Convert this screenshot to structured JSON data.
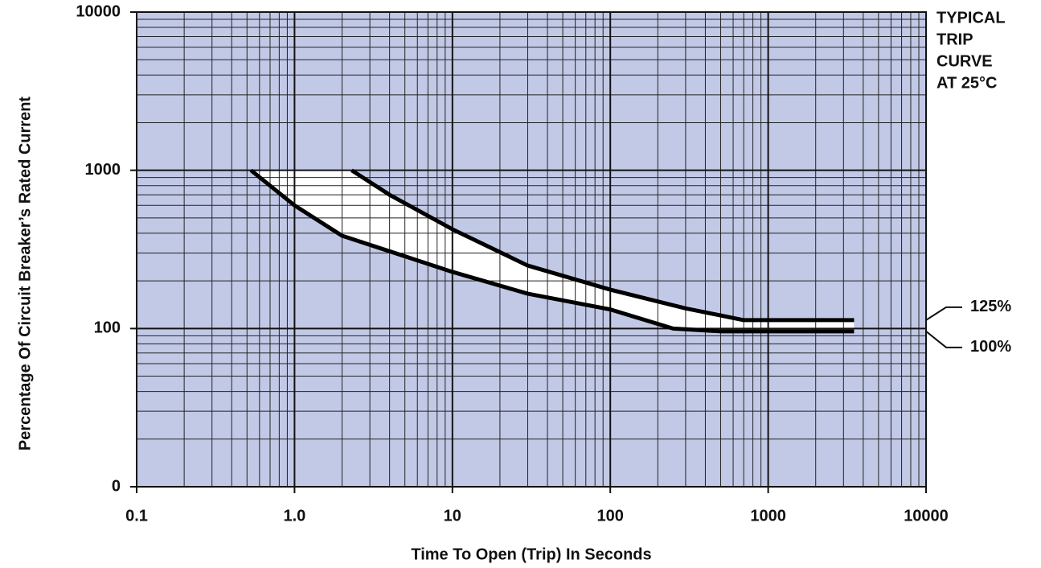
{
  "chart_data": {
    "type": "line",
    "xlabel": "Time To Open (Trip) In Seconds",
    "ylabel": "Percentage Of Circuit Breaker’s Rated Current",
    "annotation": [
      "TYPICAL",
      "TRIP",
      "CURVE",
      "AT 25°C"
    ],
    "xlog": true,
    "ylog": true,
    "grid": true,
    "minor_grid": true,
    "background": "#c2c9e6",
    "band_color": "#ffffff",
    "xlim": [
      0.1,
      10000
    ],
    "xticks": [
      0.1,
      {
        "value": 1,
        "label": "1.0"
      },
      10,
      100,
      1000,
      10000
    ],
    "ylim": [
      10,
      10000
    ],
    "yticks": [
      {
        "value": 10,
        "label": "0"
      },
      100,
      1000,
      10000
    ],
    "series": [
      {
        "name": "125%",
        "color": "#000000",
        "x": [
          2.3,
          4,
          10,
          30,
          100,
          300,
          700,
          3500
        ],
        "values": [
          1000,
          700,
          424,
          250,
          176,
          134,
          113,
          113
        ]
      },
      {
        "name": "100%",
        "color": "#000000",
        "x": [
          0.53,
          1,
          2,
          10,
          30,
          100,
          250,
          500,
          3500
        ],
        "values": [
          1000,
          600,
          386,
          228,
          166,
          132,
          100,
          96,
          96
        ]
      }
    ]
  }
}
